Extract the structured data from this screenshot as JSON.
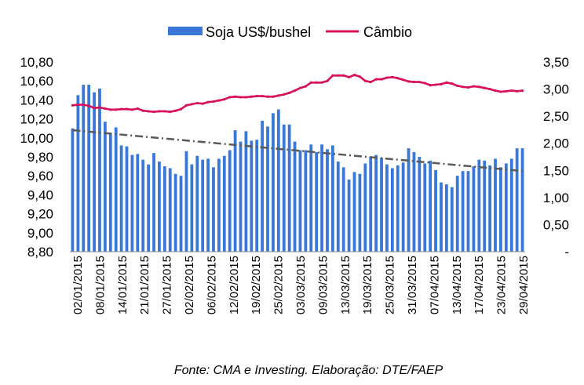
{
  "chart_data": {
    "type": "bar",
    "legend": {
      "placement": "top",
      "entries": [
        "Soja US$/bushel",
        "Câmbio"
      ]
    },
    "source": "Fonte: CMA e Investing. Elaboração: DTE/FAEP",
    "y_left": {
      "min": 8.8,
      "max": 10.8,
      "ticks": [
        "8,80",
        "9,00",
        "9,20",
        "9,40",
        "9,60",
        "9,80",
        "10,00",
        "10,20",
        "10,40",
        "10,60",
        "10,80"
      ]
    },
    "y_right": {
      "min": 0,
      "max": 3.5,
      "ticks": [
        "-",
        "0,50",
        "1,00",
        "1,50",
        "2,00",
        "2,50",
        "3,00",
        "3,50"
      ]
    },
    "x_tick_labels": [
      "02/01/2015",
      "08/01/2015",
      "14/01/2015",
      "21/01/2015",
      "27/01/2015",
      "02/02/2015",
      "06/02/2015",
      "12/02/2015",
      "19/02/2015",
      "25/02/2015",
      "03/03/2015",
      "09/03/2015",
      "13/03/2015",
      "19/03/2015",
      "25/03/2015",
      "31/03/2015",
      "07/04/2015",
      "13/04/2015",
      "17/04/2015",
      "23/04/2015",
      "29/04/2015"
    ],
    "colors": {
      "bars": "#3a78d8",
      "line": "#d8105a",
      "trend": "#595959"
    },
    "series": [
      {
        "name": "Soja US$/bushel",
        "type": "bar",
        "axis": "left",
        "values": [
          10.1,
          10.45,
          10.56,
          10.56,
          10.48,
          10.52,
          10.17,
          10.05,
          10.11,
          9.92,
          9.91,
          9.82,
          9.83,
          9.77,
          9.72,
          9.84,
          9.75,
          9.7,
          9.68,
          9.62,
          9.6,
          9.86,
          9.72,
          9.81,
          9.77,
          9.78,
          9.69,
          9.78,
          9.81,
          9.87,
          10.08,
          9.96,
          10.07,
          9.97,
          9.98,
          10.18,
          10.12,
          10.26,
          10.3,
          10.14,
          10.14,
          9.96,
          9.87,
          9.87,
          9.93,
          9.85,
          9.93,
          9.88,
          9.92,
          9.75,
          9.69,
          9.56,
          9.64,
          9.62,
          9.73,
          9.8,
          9.82,
          9.79,
          9.72,
          9.68,
          9.71,
          9.74,
          9.89,
          9.85,
          9.8,
          9.73,
          9.76,
          9.66,
          9.53,
          9.51,
          9.48,
          9.6,
          9.65,
          9.65,
          9.7,
          9.77,
          9.76,
          9.71,
          9.78,
          9.69,
          9.73,
          9.78,
          9.89,
          9.89
        ]
      },
      {
        "name": "Câmbio",
        "type": "line",
        "axis": "right",
        "values": [
          2.7,
          2.71,
          2.71,
          2.69,
          2.65,
          2.66,
          2.64,
          2.62,
          2.62,
          2.63,
          2.63,
          2.62,
          2.64,
          2.6,
          2.59,
          2.58,
          2.59,
          2.59,
          2.58,
          2.6,
          2.63,
          2.7,
          2.72,
          2.74,
          2.73,
          2.76,
          2.77,
          2.79,
          2.81,
          2.85,
          2.86,
          2.85,
          2.85,
          2.86,
          2.87,
          2.87,
          2.86,
          2.86,
          2.88,
          2.9,
          2.93,
          2.97,
          3.02,
          3.05,
          3.12,
          3.12,
          3.12,
          3.15,
          3.25,
          3.25,
          3.25,
          3.22,
          3.26,
          3.23,
          3.15,
          3.13,
          3.18,
          3.18,
          3.21,
          3.22,
          3.2,
          3.17,
          3.14,
          3.13,
          3.13,
          3.11,
          3.07,
          3.08,
          3.09,
          3.12,
          3.1,
          3.06,
          3.04,
          3.03,
          3.05,
          3.04,
          3.02,
          3.0,
          2.97,
          2.95,
          2.96,
          2.97,
          2.96,
          2.97
        ]
      }
    ]
  }
}
